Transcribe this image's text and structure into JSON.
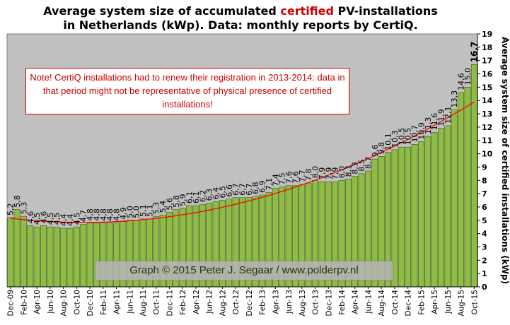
{
  "title": {
    "line1_pre": "Average system size of accumulated ",
    "line1_highlight": "certified",
    "line1_post": " PV-installations",
    "line2": "in Netherlands (kWp). Data: monthly reports by CertiQ."
  },
  "note": "Note! CertiQ installations had to renew their registration in 2013-2014: data in that period might not be representative of physical presence of certified installations!",
  "credit": "Graph © 2015 Peter J. Segaar / www.polderpv.nl",
  "colors": {
    "bar": "#8fbc45",
    "bar_edge": "#3d5a10",
    "plot_bg": "#c0c0c0",
    "trend": "#ff0000",
    "accent": "#cc0000"
  },
  "chart_data": {
    "type": "bar",
    "categories": [
      "Dec-09",
      "Jan-10",
      "Feb-10",
      "Mar-10",
      "Apr-10",
      "May-10",
      "Jun-10",
      "Jul-10",
      "Aug-10",
      "Sep-10",
      "Oct-10",
      "Nov-10",
      "Dec-10",
      "Jan-11",
      "Feb-11",
      "Mar-11",
      "Apr-11",
      "May-11",
      "Jun-11",
      "Jul-11",
      "Aug-11",
      "Sep-11",
      "Oct-11",
      "Nov-11",
      "Dec-11",
      "Jan-12",
      "Feb-12",
      "Mar-12",
      "Apr-12",
      "May-12",
      "Jun-12",
      "Jul-12",
      "Aug-12",
      "Sep-12",
      "Oct-12",
      "Nov-12",
      "Dec-12",
      "Jan-13",
      "Feb-13",
      "Mar-13",
      "Apr-13",
      "May-13",
      "Jun-13",
      "Jul-13",
      "Aug-13",
      "Sep-13",
      "Oct-13",
      "Nov-13",
      "Dec-13",
      "Jan-14",
      "Feb-14",
      "Mar-14",
      "Apr-14",
      "May-14",
      "Jun-14",
      "Jul-14",
      "Aug-14",
      "Sep-14",
      "Oct-14",
      "Nov-14",
      "Dec-14",
      "Jan-15",
      "Feb-15",
      "Mar-15",
      "Apr-15",
      "May-15",
      "Jun-15",
      "Jul-15",
      "Aug-15",
      "Sep-15",
      "Oct-15"
    ],
    "xticks": [
      "Dec-09",
      "Feb-10",
      "Apr-10",
      "Jun-10",
      "Aug-10",
      "Oct-10",
      "Dec-10",
      "Feb-11",
      "Apr-11",
      "Jun-11",
      "Aug-11",
      "Oct-11",
      "Dec-11",
      "Feb-12",
      "Apr-12",
      "Jun-12",
      "Aug-12",
      "Oct-12",
      "Dec-12",
      "Feb-13",
      "Apr-13",
      "Jun-13",
      "Aug-13",
      "Oct-13",
      "Dec-13",
      "Feb-14",
      "Apr-14",
      "Jun-14",
      "Aug-14",
      "Oct-14",
      "Dec-14",
      "Feb-15",
      "Apr-15",
      "Jun-15",
      "Aug-15",
      "Oct-15"
    ],
    "values": [
      5.2,
      5.8,
      5.3,
      4.6,
      4.5,
      4.6,
      4.5,
      4.5,
      4.4,
      4.4,
      4.5,
      4.7,
      4.8,
      4.8,
      4.8,
      4.8,
      4.8,
      4.9,
      5.0,
      5.0,
      5.1,
      5.1,
      5.3,
      5.4,
      5.6,
      5.8,
      5.9,
      6.1,
      6.1,
      6.2,
      6.3,
      6.4,
      6.5,
      6.6,
      6.7,
      6.7,
      6.7,
      6.8,
      6.9,
      7.1,
      7.4,
      7.5,
      7.6,
      7.6,
      7.7,
      7.8,
      8.0,
      7.9,
      7.9,
      7.9,
      8.0,
      8.1,
      8.3,
      8.5,
      8.7,
      9.6,
      9.8,
      10.1,
      10.3,
      10.5,
      10.5,
      10.7,
      10.9,
      11.3,
      11.6,
      11.9,
      12.1,
      13.3,
      14.6,
      15.0,
      16.7
    ],
    "value_labels": [
      "5,2",
      "5,8",
      "5,3",
      "4,6",
      "4,5",
      "4,6",
      "4,5",
      "4,5",
      "4,4",
      "4,4",
      "4,5",
      "4,7",
      "4,8",
      "4,8",
      "4,8",
      "4,8",
      "4,8",
      "4,9",
      "5,0",
      "5,0",
      "5,1",
      "5,1",
      "5,3",
      "5,4",
      "5,6",
      "5,8",
      "5,9",
      "6,1",
      "6,1",
      "6,2",
      "6,3",
      "6,4",
      "6,5",
      "6,6",
      "6,7",
      "6,7",
      "6,7",
      "6,8",
      "6,9",
      "7,1",
      "7,4",
      "7,5",
      "7,6",
      "7,6",
      "7,7",
      "7,8",
      "8,0",
      "7,9",
      "7,9",
      "7,9",
      "8,0",
      "8,1",
      "8,3",
      "8,5",
      "8,7",
      "9,6",
      "9,8",
      "10,1",
      "10,3",
      "10,5",
      "10,5",
      "10,7",
      "10,9",
      "11,3",
      "11,6",
      "11,9",
      "12,1",
      "13,3",
      "14,6",
      "15,0",
      "16,7"
    ],
    "ylabel": "Average system size of certified installations  (kWp)",
    "ylim": [
      0,
      19
    ],
    "yticks": [
      0,
      1,
      2,
      3,
      4,
      5,
      6,
      7,
      8,
      9,
      10,
      11,
      12,
      13,
      14,
      15,
      16,
      17,
      18,
      19
    ],
    "trendline": "polynomial",
    "grid": false
  }
}
